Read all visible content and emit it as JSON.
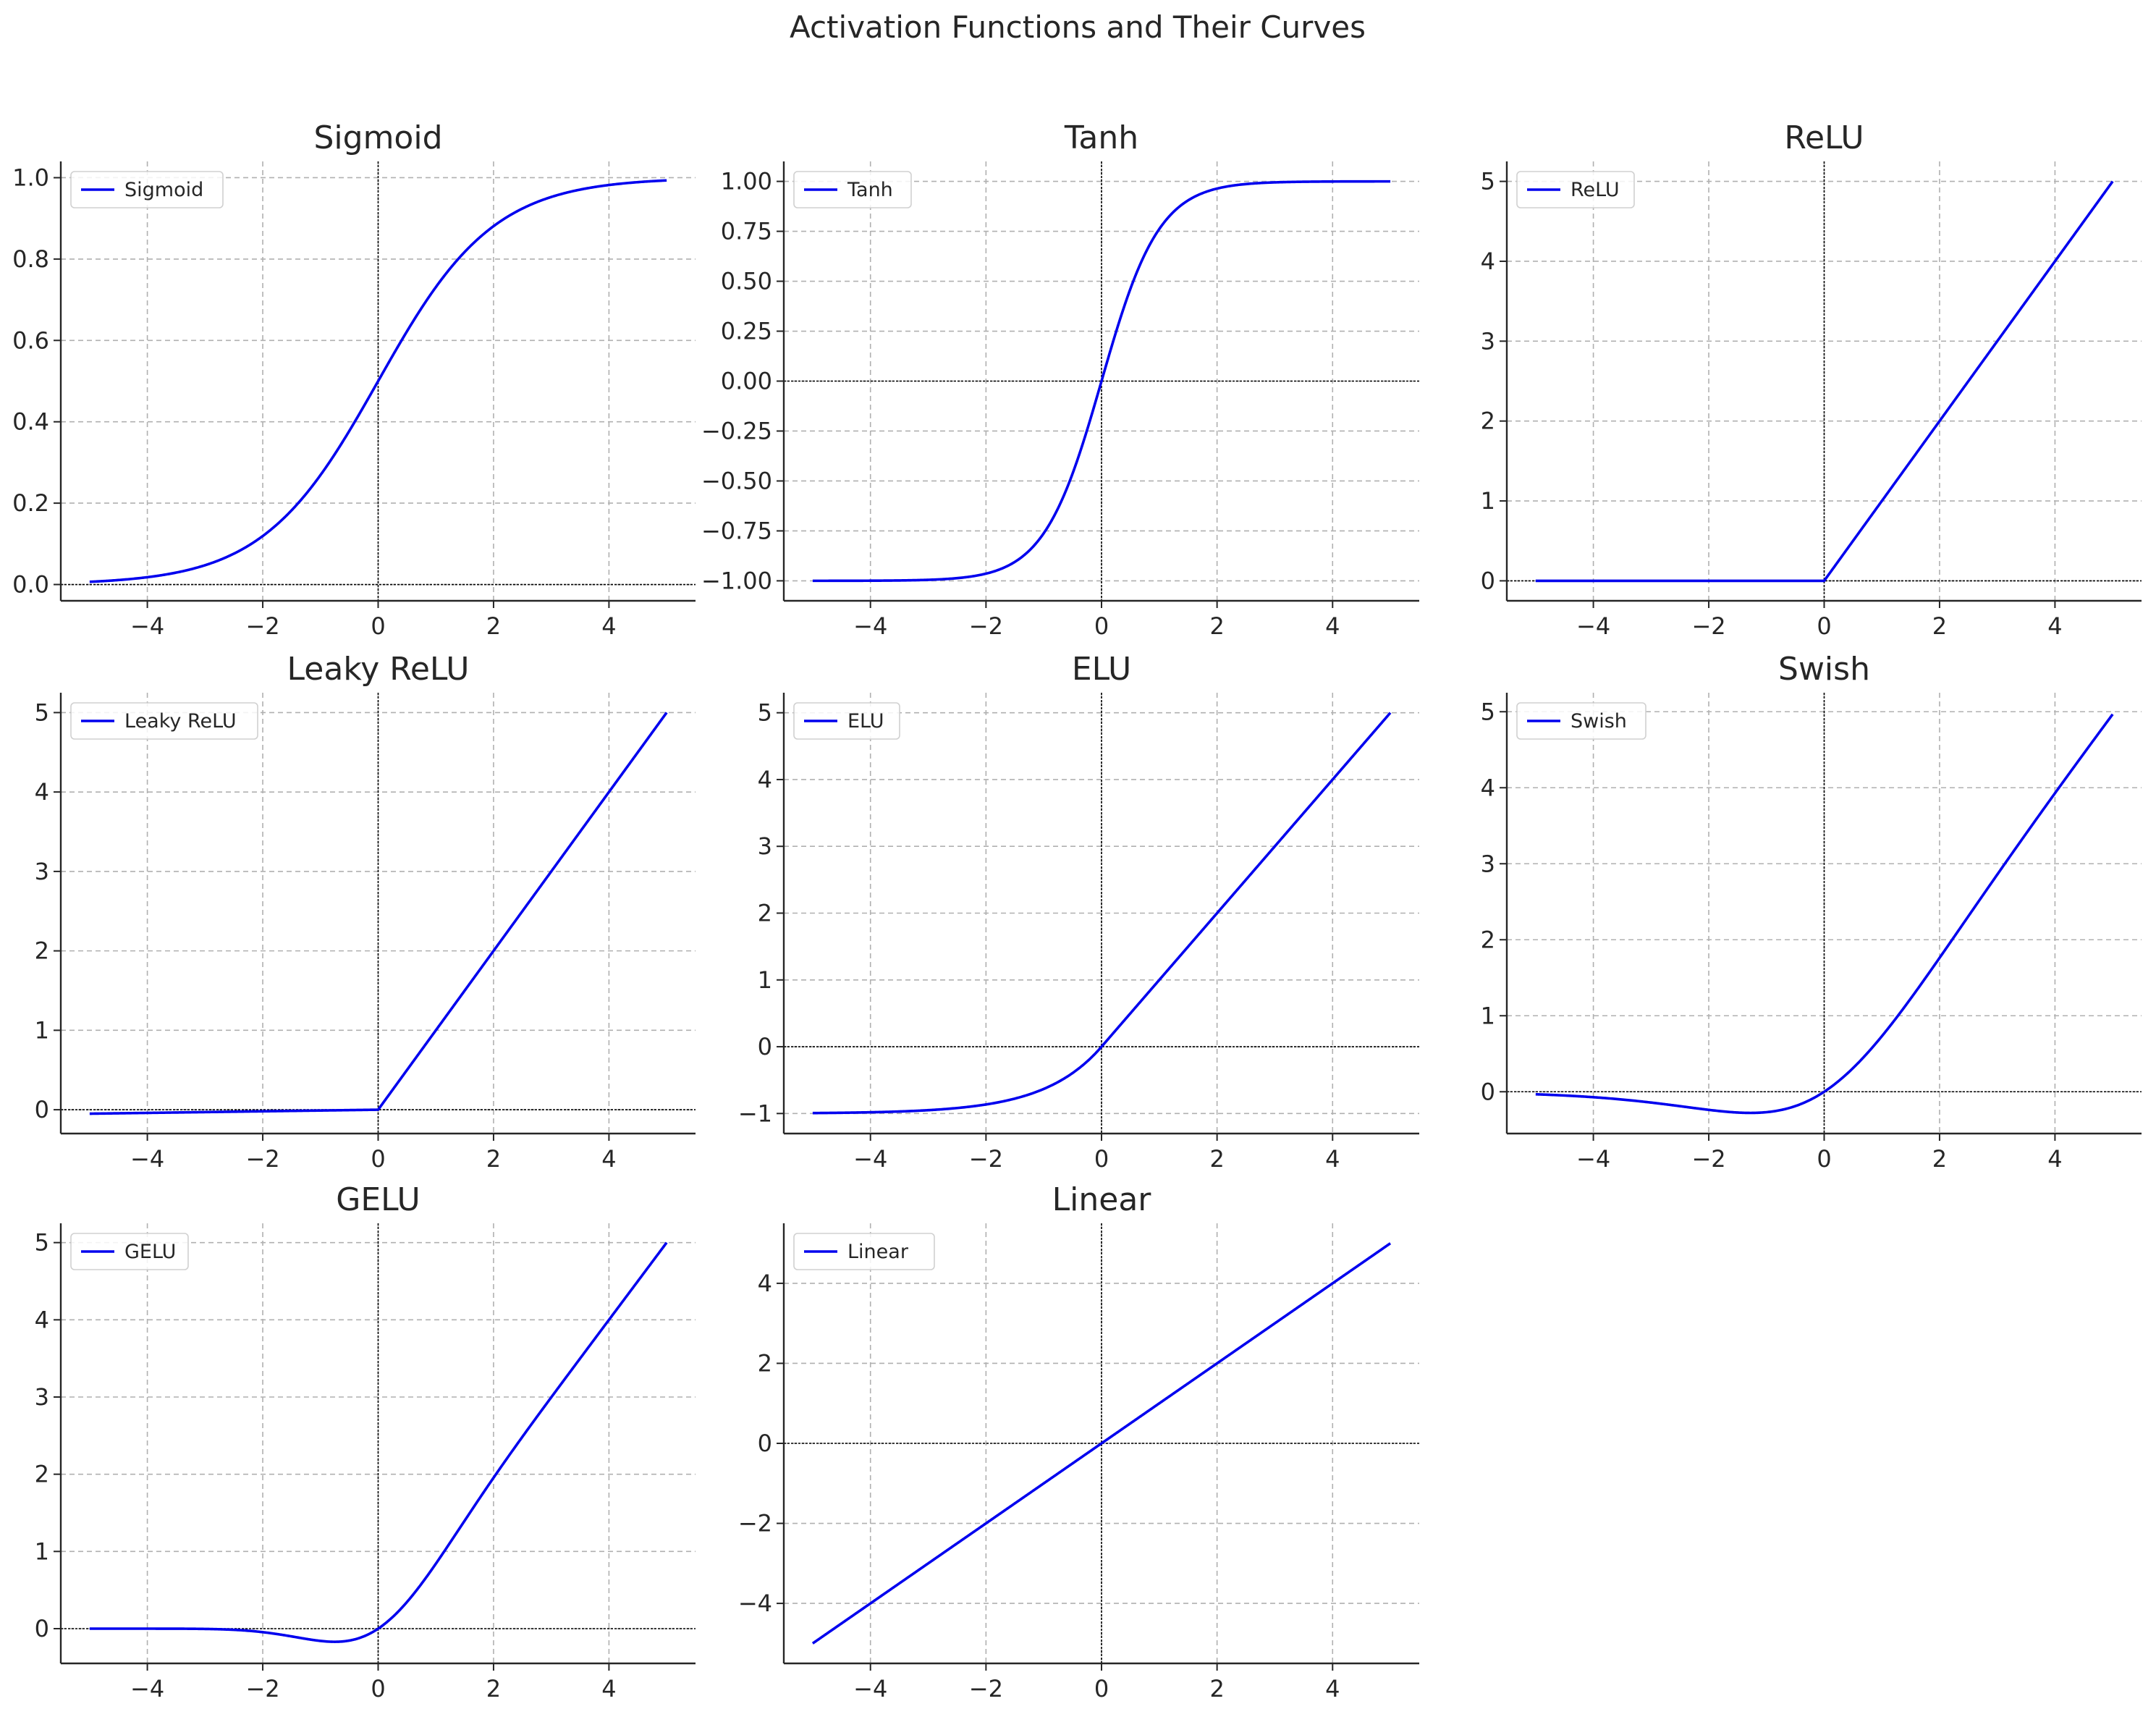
{
  "figure_title": "Activation Functions and Their Curves",
  "colors": {
    "line": "#0000ee",
    "grid": "#b0b0b0",
    "axis": "#262626",
    "zero_line": "#000000"
  },
  "chart_data": [
    {
      "type": "line",
      "title": "Sigmoid",
      "legend": "Sigmoid",
      "legend_loc": "upper-left",
      "function": "sigmoid",
      "grid": true,
      "xlim": [
        -5.5,
        5.5
      ],
      "ylim": [
        -0.04,
        1.04
      ],
      "xticks": [
        -4,
        -2,
        0,
        2,
        4
      ],
      "xtick_labels": [
        "−4",
        "−2",
        "0",
        "2",
        "4"
      ],
      "yticks": [
        0,
        0.2,
        0.4,
        0.6,
        0.8,
        1.0
      ],
      "ytick_labels": [
        "0.0",
        "0.2",
        "0.4",
        "0.6",
        "0.8",
        "1.0"
      ],
      "x": [
        -5,
        -4,
        -3,
        -2,
        -1,
        0,
        1,
        2,
        3,
        4,
        5
      ],
      "y": [
        0.0067,
        0.018,
        0.047,
        0.119,
        0.269,
        0.5,
        0.731,
        0.881,
        0.953,
        0.982,
        0.9933
      ]
    },
    {
      "type": "line",
      "title": "Tanh",
      "legend": "Tanh",
      "legend_loc": "upper-left",
      "function": "tanh",
      "grid": true,
      "xlim": [
        -5.5,
        5.5
      ],
      "ylim": [
        -1.1,
        1.1
      ],
      "xticks": [
        -4,
        -2,
        0,
        2,
        4
      ],
      "xtick_labels": [
        "−4",
        "−2",
        "0",
        "2",
        "4"
      ],
      "yticks": [
        -1,
        -0.75,
        -0.5,
        -0.25,
        0,
        0.25,
        0.5,
        0.75,
        1
      ],
      "ytick_labels": [
        "−1.00",
        "−0.75",
        "−0.50",
        "−0.25",
        "0.00",
        "0.25",
        "0.50",
        "0.75",
        "1.00"
      ],
      "x": [
        -5,
        -4,
        -3,
        -2,
        -1,
        0,
        1,
        2,
        3,
        4,
        5
      ],
      "y": [
        -0.9999,
        -0.9993,
        -0.995,
        -0.964,
        -0.762,
        0,
        0.762,
        0.964,
        0.995,
        0.9993,
        0.9999
      ]
    },
    {
      "type": "line",
      "title": "ReLU",
      "legend": "ReLU",
      "legend_loc": "upper-left",
      "function": "relu",
      "grid": true,
      "xlim": [
        -5.5,
        5.5
      ],
      "ylim": [
        -0.25,
        5.25
      ],
      "xticks": [
        -4,
        -2,
        0,
        2,
        4
      ],
      "xtick_labels": [
        "−4",
        "−2",
        "0",
        "2",
        "4"
      ],
      "yticks": [
        0,
        1,
        2,
        3,
        4,
        5
      ],
      "ytick_labels": [
        "0",
        "1",
        "2",
        "3",
        "4",
        "5"
      ],
      "x": [
        -5,
        -4,
        -3,
        -2,
        -1,
        0,
        1,
        2,
        3,
        4,
        5
      ],
      "y": [
        0,
        0,
        0,
        0,
        0,
        0,
        1,
        2,
        3,
        4,
        5
      ]
    },
    {
      "type": "line",
      "title": "Leaky ReLU",
      "legend": "Leaky ReLU",
      "legend_loc": "upper-left",
      "function": "leaky_relu",
      "grid": true,
      "xlim": [
        -5.5,
        5.5
      ],
      "ylim": [
        -0.3,
        5.25
      ],
      "xticks": [
        -4,
        -2,
        0,
        2,
        4
      ],
      "xtick_labels": [
        "−4",
        "−2",
        "0",
        "2",
        "4"
      ],
      "yticks": [
        0,
        1,
        2,
        3,
        4,
        5
      ],
      "ytick_labels": [
        "0",
        "1",
        "2",
        "3",
        "4",
        "5"
      ],
      "x": [
        -5,
        -4,
        -3,
        -2,
        -1,
        0,
        1,
        2,
        3,
        4,
        5
      ],
      "y": [
        -0.05,
        -0.04,
        -0.03,
        -0.02,
        -0.01,
        0,
        1,
        2,
        3,
        4,
        5
      ]
    },
    {
      "type": "line",
      "title": "ELU",
      "legend": "ELU",
      "legend_loc": "upper-left",
      "function": "elu",
      "grid": true,
      "xlim": [
        -5.5,
        5.5
      ],
      "ylim": [
        -1.3,
        5.3
      ],
      "xticks": [
        -4,
        -2,
        0,
        2,
        4
      ],
      "xtick_labels": [
        "−4",
        "−2",
        "0",
        "2",
        "4"
      ],
      "yticks": [
        -1,
        0,
        1,
        2,
        3,
        4,
        5
      ],
      "ytick_labels": [
        "−1",
        "0",
        "1",
        "2",
        "3",
        "4",
        "5"
      ],
      "x": [
        -5,
        -4,
        -3,
        -2,
        -1,
        0,
        1,
        2,
        3,
        4,
        5
      ],
      "y": [
        -0.993,
        -0.982,
        -0.95,
        -0.865,
        -0.632,
        0,
        1,
        2,
        3,
        4,
        5
      ]
    },
    {
      "type": "line",
      "title": "Swish",
      "legend": "Swish",
      "legend_loc": "upper-left",
      "function": "swish",
      "grid": true,
      "xlim": [
        -5.5,
        5.5
      ],
      "ylim": [
        -0.55,
        5.25
      ],
      "xticks": [
        -4,
        -2,
        0,
        2,
        4
      ],
      "xtick_labels": [
        "−4",
        "−2",
        "0",
        "2",
        "4"
      ],
      "yticks": [
        0,
        1,
        2,
        3,
        4,
        5
      ],
      "ytick_labels": [
        "0",
        "1",
        "2",
        "3",
        "4",
        "5"
      ],
      "x": [
        -5,
        -4,
        -3,
        -2,
        -1.28,
        -1,
        0,
        1,
        2,
        3,
        4,
        5
      ],
      "y": [
        -0.033,
        -0.072,
        -0.142,
        -0.238,
        -0.278,
        -0.269,
        0,
        0.731,
        1.762,
        2.858,
        3.928,
        4.967
      ]
    },
    {
      "type": "line",
      "title": "GELU",
      "legend": "GELU",
      "legend_loc": "upper-left",
      "function": "gelu",
      "grid": true,
      "xlim": [
        -5.5,
        5.5
      ],
      "ylim": [
        -0.45,
        5.25
      ],
      "xticks": [
        -4,
        -2,
        0,
        2,
        4
      ],
      "xtick_labels": [
        "−4",
        "−2",
        "0",
        "2",
        "4"
      ],
      "yticks": [
        0,
        1,
        2,
        3,
        4,
        5
      ],
      "ytick_labels": [
        "0",
        "1",
        "2",
        "3",
        "4",
        "5"
      ],
      "x": [
        -5,
        -4,
        -3,
        -2,
        -1,
        -0.75,
        0,
        1,
        2,
        3,
        4,
        5
      ],
      "y": [
        0,
        0,
        -0.004,
        -0.045,
        -0.159,
        -0.17,
        0,
        0.841,
        1.955,
        2.996,
        4,
        5
      ]
    },
    {
      "type": "line",
      "title": "Linear",
      "legend": "Linear",
      "legend_loc": "upper-left",
      "function": "linear",
      "grid": true,
      "xlim": [
        -5.5,
        5.5
      ],
      "ylim": [
        -5.5,
        5.5
      ],
      "xticks": [
        -4,
        -2,
        0,
        2,
        4
      ],
      "xtick_labels": [
        "−4",
        "−2",
        "0",
        "2",
        "4"
      ],
      "yticks": [
        -4,
        -2,
        0,
        2,
        4
      ],
      "ytick_labels": [
        "−4",
        "−2",
        "0",
        "2",
        "4"
      ],
      "x": [
        -5,
        0,
        5
      ],
      "y": [
        -5,
        0,
        5
      ]
    }
  ]
}
